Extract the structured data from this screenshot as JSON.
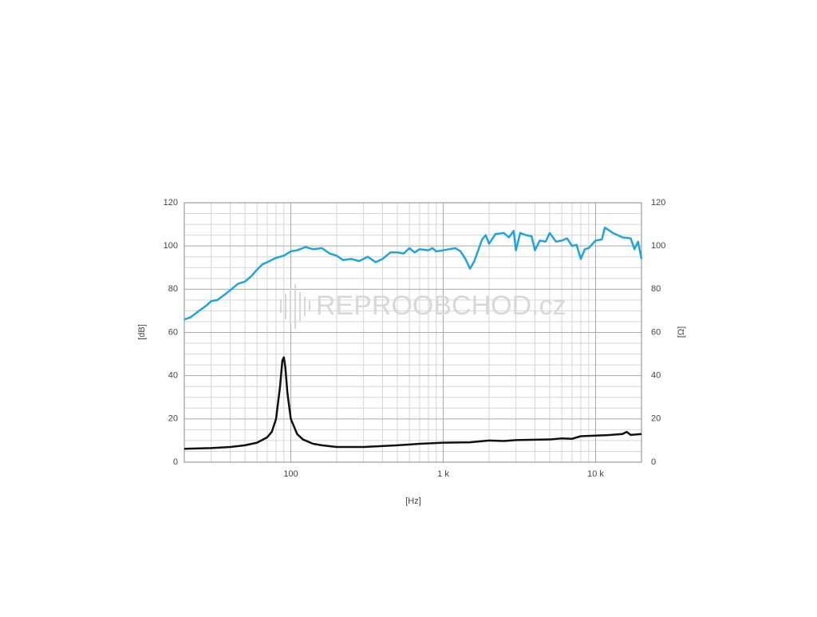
{
  "chart_data": {
    "type": "line",
    "x_label": "[Hz]",
    "y_label": "[dB]",
    "y2_label": "[Ω]",
    "watermark": "REPROOBCHOD.cz",
    "x_scale": "log",
    "xlim": [
      20,
      20000
    ],
    "xticks": [
      100,
      {
        "value": 1000,
        "label": "1 k"
      },
      {
        "value": 10000,
        "label": "10 k"
      }
    ],
    "ylim": [
      0,
      120
    ],
    "yticks": [
      0,
      20,
      40,
      60,
      80,
      100,
      120
    ],
    "y2lim": [
      0,
      120
    ],
    "y2ticks": [
      0,
      20,
      40,
      60,
      80,
      100,
      120
    ],
    "grid": true,
    "minor_grid": true,
    "series": [
      {
        "color": "#1ea6dc",
        "x": [
          20,
          22,
          25,
          28,
          30,
          33,
          36,
          40,
          45,
          50,
          55,
          60,
          65,
          70,
          80,
          90,
          100,
          110,
          125,
          140,
          160,
          180,
          200,
          220,
          250,
          280,
          320,
          360,
          400,
          450,
          500,
          550,
          600,
          650,
          700,
          800,
          850,
          900,
          1000,
          1200,
          1300,
          1400,
          1500,
          1600,
          1800,
          1900,
          2000,
          2200,
          2500,
          2700,
          2900,
          3000,
          3200,
          3500,
          3800,
          4000,
          4300,
          4700,
          5000,
          5500,
          6000,
          6500,
          7000,
          7500,
          8000,
          8500,
          9000,
          10000,
          11000,
          11500,
          13000,
          15000,
          17000,
          18000,
          19000,
          20000
        ],
        "values": [
          66,
          67,
          70,
          72.5,
          74.5,
          75,
          77,
          79.5,
          82.5,
          83.5,
          86,
          89,
          91.5,
          92.5,
          94.5,
          95.5,
          97.5,
          98,
          99.5,
          98.5,
          99,
          96.5,
          95.5,
          93.5,
          94,
          93,
          95,
          92.5,
          94,
          97,
          97,
          96.5,
          99,
          97,
          98.5,
          98,
          99,
          97.5,
          98,
          99,
          97.5,
          94,
          89.5,
          93,
          103,
          105,
          101,
          105.5,
          106,
          104,
          107,
          98,
          106,
          105,
          104.5,
          98,
          102.5,
          102,
          106,
          102,
          102.5,
          103.5,
          100,
          100.5,
          94,
          98.5,
          99,
          102.5,
          103,
          108.5,
          106,
          104,
          103.5,
          98.5,
          102,
          94
        ]
      },
      {
        "color": "#111111",
        "axis": "y2",
        "x": [
          20,
          30,
          40,
          50,
          60,
          70,
          75,
          80,
          85,
          88,
          90,
          92,
          95,
          100,
          110,
          120,
          140,
          160,
          200,
          300,
          500,
          700,
          1000,
          1500,
          2000,
          2500,
          3000,
          5000,
          6000,
          7000,
          8000,
          10000,
          12000,
          15000,
          16000,
          17000,
          20000
        ],
        "values": [
          6.2,
          6.5,
          7,
          7.8,
          9,
          11.5,
          14,
          20,
          35,
          47,
          48.5,
          44,
          32,
          20,
          13,
          10.5,
          8.5,
          7.8,
          7,
          7,
          7.8,
          8.5,
          9,
          9.2,
          10,
          9.8,
          10.2,
          10.5,
          11,
          10.8,
          12,
          12.3,
          12.5,
          13,
          14,
          12.6,
          13
        ]
      }
    ]
  }
}
